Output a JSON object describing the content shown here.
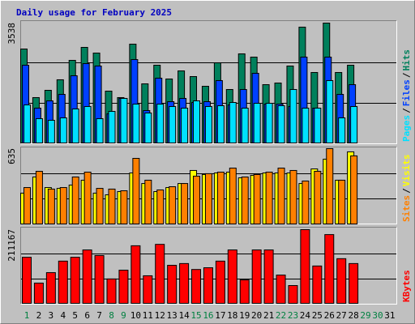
{
  "chart_data": [
    {
      "type": "bar",
      "title": "Daily usage for February 2025",
      "ylim": [
        0,
        3538
      ],
      "yticks": [
        3538
      ],
      "grid": true,
      "legend_separator": "/",
      "series": [
        {
          "name": "Hits",
          "color": "#00805c",
          "values": [
            2773,
            1339,
            1554,
            1865,
            2438,
            2821,
            2653,
            1530,
            1339,
            2916,
            1745,
            2295,
            1888,
            2127,
            1960,
            1673,
            2366,
            1578,
            2630,
            2534,
            1721,
            1769,
            2271,
            3418,
            2080,
            3538,
            2080,
            2295,
            null,
            null,
            null
          ]
        },
        {
          "name": "Files",
          "color": "#0040ff",
          "values": [
            2295,
            1028,
            1243,
            1434,
            1984,
            2342,
            2271,
            860,
            1315,
            2462,
            956,
            1912,
            1219,
            1315,
            1195,
            1219,
            1841,
            1123,
            1578,
            2056,
            1147,
            1147,
            1076,
            2534,
            1028,
            2534,
            1434,
            1721,
            null,
            null,
            null
          ]
        },
        {
          "name": "Pages",
          "color": "#00e0ff",
          "values": [
            1123,
            717,
            669,
            741,
            1004,
            1076,
            717,
            932,
            1315,
            1147,
            884,
            1147,
            1076,
            1028,
            1243,
            1076,
            1100,
            1195,
            1028,
            1171,
            1171,
            1100,
            1578,
            1028,
            1028,
            1841,
            741,
            1076,
            null,
            null,
            null
          ]
        }
      ]
    },
    {
      "type": "bar",
      "ylim": [
        0,
        635
      ],
      "yticks": [
        635
      ],
      "grid": true,
      "legend_separator": "/",
      "series": [
        {
          "name": "Visits",
          "color": "#ffff00",
          "values": [
            260,
            396,
            307,
            300,
            328,
            369,
            260,
            246,
            273,
            430,
            341,
            273,
            307,
            341,
            451,
            417,
            430,
            437,
            389,
            410,
            430,
            430,
            430,
            341,
            464,
            546,
            369,
            608,
            null,
            null,
            null
          ]
        },
        {
          "name": "Sites",
          "color": "#ff8000",
          "values": [
            307,
            444,
            294,
            307,
            396,
            437,
            300,
            294,
            280,
            553,
            369,
            287,
            314,
            341,
            403,
            424,
            437,
            471,
            396,
            417,
            437,
            471,
            451,
            362,
            444,
            635,
            369,
            574,
            null,
            null,
            null
          ]
        }
      ]
    },
    {
      "type": "bar",
      "ylim": [
        0,
        211167
      ],
      "yticks": [
        211167
      ],
      "grid": true,
      "series": [
        {
          "name": "KBytes",
          "color": "#ff0000",
          "values": [
            132000,
            58000,
            88000,
            121000,
            132000,
            153000,
            137000,
            70000,
            95000,
            165000,
            79000,
            169000,
            109000,
            114000,
            97000,
            102000,
            121000,
            153000,
            67000,
            153000,
            153000,
            81000,
            51000,
            211167,
            107000,
            197000,
            128000,
            114000,
            null,
            null,
            null
          ]
        }
      ],
      "categories": [
        "1",
        "2",
        "3",
        "4",
        "5",
        "6",
        "7",
        "8",
        "9",
        "10",
        "11",
        "12",
        "13",
        "14",
        "15",
        "16",
        "17",
        "18",
        "19",
        "20",
        "21",
        "22",
        "23",
        "24",
        "25",
        "26",
        "27",
        "28",
        "29",
        "30",
        "31"
      ],
      "category_colors": [
        "#008040",
        "#000000",
        "#000000",
        "#000000",
        "#000000",
        "#000000",
        "#000000",
        "#008040",
        "#008040",
        "#000000",
        "#000000",
        "#000000",
        "#000000",
        "#000000",
        "#008040",
        "#008040",
        "#000000",
        "#000000",
        "#000000",
        "#000000",
        "#000000",
        "#008040",
        "#008040",
        "#000000",
        "#000000",
        "#000000",
        "#000000",
        "#000000",
        "#008040",
        "#008040",
        "#000000"
      ]
    }
  ]
}
